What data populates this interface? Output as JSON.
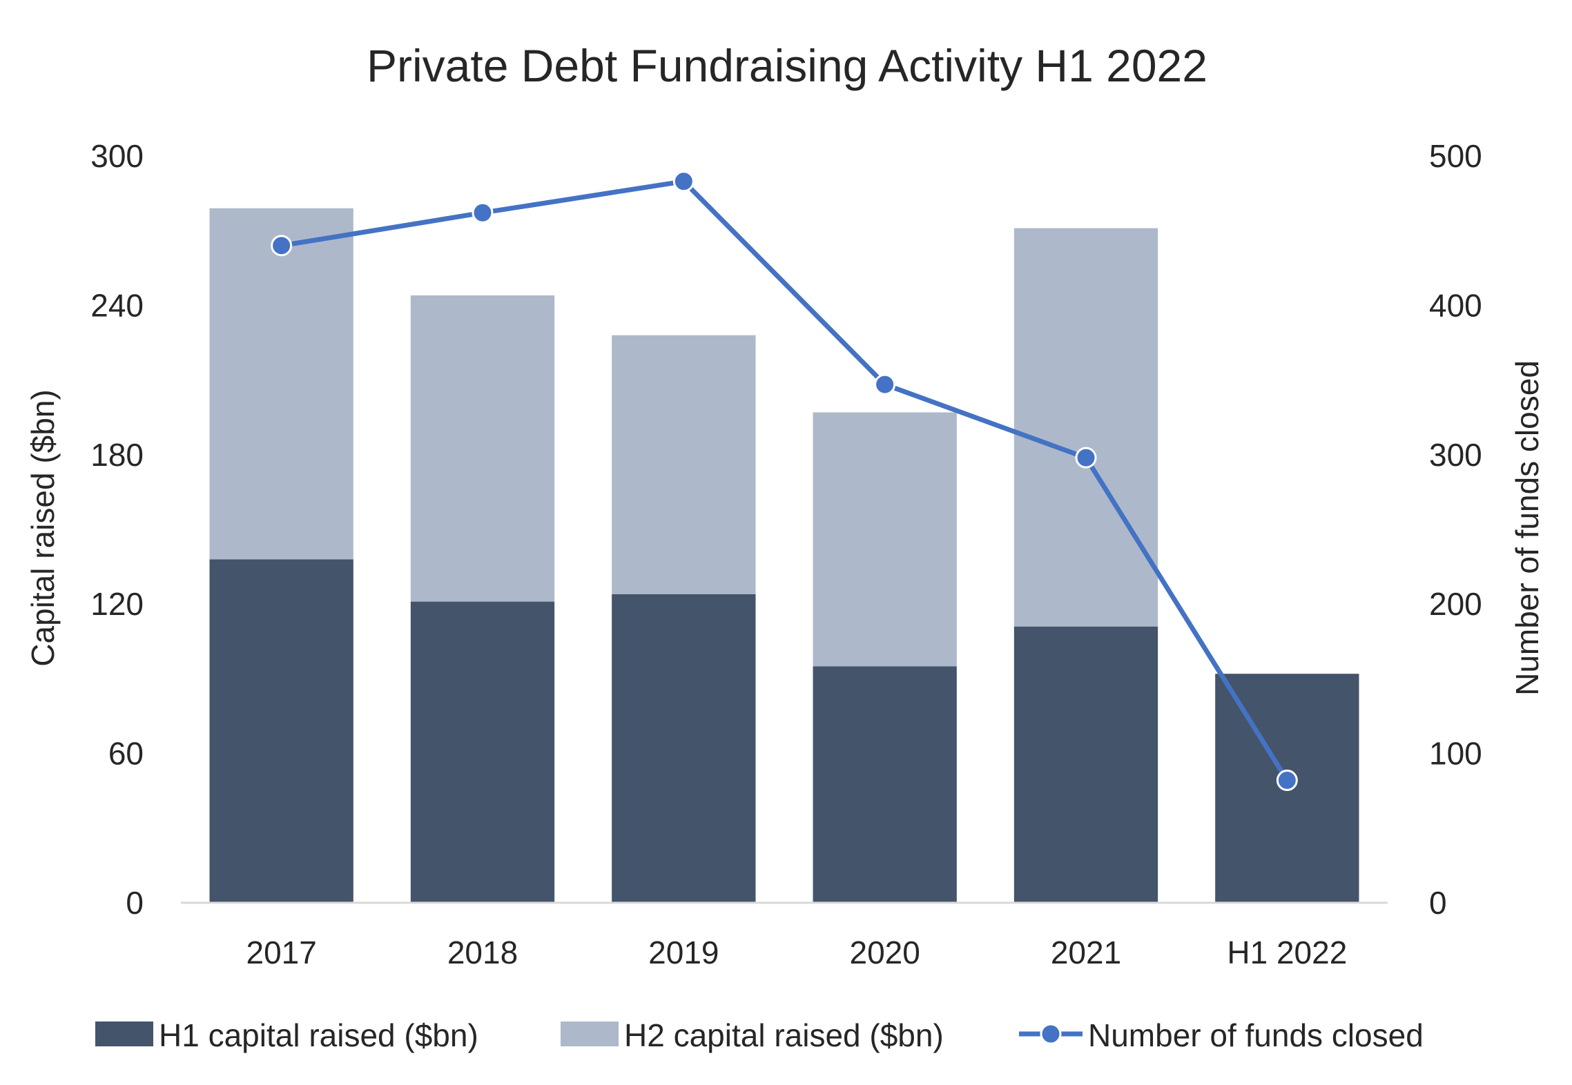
{
  "chart_data": {
    "type": "bar",
    "title": "Private Debt Fundraising Activity H1 2022",
    "categories": [
      "2017",
      "2018",
      "2019",
      "2020",
      "2021",
      "H1 2022"
    ],
    "series": [
      {
        "name": "H1 capital raised ($bn)",
        "kind": "bar",
        "stack": "capital",
        "axis": "left",
        "color": "#44546a",
        "values": [
          138,
          121,
          124,
          95,
          111,
          92
        ]
      },
      {
        "name": "H2 capital raised ($bn)",
        "kind": "bar",
        "stack": "capital",
        "axis": "left",
        "color": "#adb9ca",
        "values": [
          141,
          123,
          104,
          102,
          160,
          0
        ]
      },
      {
        "name": "Number of funds closed",
        "kind": "line",
        "axis": "right",
        "color": "#4472c4",
        "values": [
          440,
          462,
          483,
          347,
          298,
          82
        ]
      }
    ],
    "ylabel": "Capital raised ($bn)",
    "ylim": [
      0,
      300
    ],
    "yticks": [
      "0",
      "60",
      "120",
      "180",
      "240",
      "300"
    ],
    "y2label": "Number of funds closed",
    "y2lim": [
      0,
      500
    ],
    "y2ticks": [
      "0",
      "100",
      "200",
      "300",
      "400",
      "500"
    ],
    "legend_position": "bottom",
    "grid": false
  }
}
